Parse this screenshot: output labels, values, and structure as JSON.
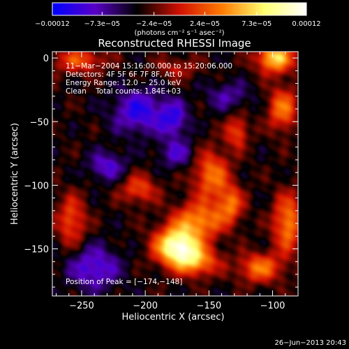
{
  "chart_data": {
    "type": "heatmap",
    "title": "Reconstructed RHESSI Image",
    "xlabel": "Heliocentric X (arcsec)",
    "ylabel": "Heliocentric Y (arcsec)",
    "xlim": [
      -273,
      -80
    ],
    "ylim": [
      -187,
      5
    ],
    "x_ticks": [
      -250,
      -200,
      -150,
      -100
    ],
    "x_tick_labels": [
      "−250",
      "−200",
      "−150",
      "−100"
    ],
    "y_ticks": [
      0,
      -50,
      -100,
      -150
    ],
    "y_tick_labels": [
      "0",
      "−50",
      "−100",
      "−150"
    ],
    "colorbar": {
      "range": [
        -0.00012,
        0.00012
      ],
      "ticks": [
        -0.00012,
        -7.3e-05,
        -2.4e-05,
        2.4e-05,
        7.3e-05,
        0.00012
      ],
      "tick_labels": [
        "−0.00012",
        "−7.3e−05",
        "−2.4e−05",
        "2.4e−05",
        "7.3e−05",
        "0.00012"
      ],
      "units": "(photons cm⁻² s⁻¹ asec⁻²)",
      "colormap": [
        "#0000ff",
        "#5a00c8",
        "#000000",
        "#d21000",
        "#ff7a00",
        "#ffff70",
        "#ffffff"
      ]
    },
    "annotations": [
      "11−Mar−2004 15:16:00.000 to 15:20:06.000",
      "Detectors: 4F 5F 6F 7F 8F, Att 0",
      "Energy Range: 12.0 − 25.0 keV",
      "Clean    Total counts: 1.84E+03"
    ],
    "peak_label": "Position of Peak = [−174,−148]",
    "peak": {
      "x": -174,
      "y": -148
    },
    "sources": [
      {
        "x": -175,
        "y": -148,
        "amp": 1.0,
        "sx": 12,
        "sy": 10
      },
      {
        "x": -158,
        "y": -128,
        "amp": 0.55,
        "sx": 14,
        "sy": 10
      },
      {
        "x": -148,
        "y": -92,
        "amp": 0.5,
        "sx": 10,
        "sy": 14
      },
      {
        "x": -160,
        "y": -160,
        "amp": 0.55,
        "sx": 12,
        "sy": 8
      },
      {
        "x": -133,
        "y": -115,
        "amp": 0.45,
        "sx": 7,
        "sy": 10
      },
      {
        "x": -128,
        "y": -58,
        "amp": 0.4,
        "sx": 6,
        "sy": 9
      },
      {
        "x": -98,
        "y": 0,
        "amp": 0.75,
        "sx": 10,
        "sy": 8
      },
      {
        "x": -92,
        "y": -40,
        "amp": 0.5,
        "sx": 8,
        "sy": 12
      },
      {
        "x": -88,
        "y": -130,
        "amp": 0.55,
        "sx": 8,
        "sy": 16
      },
      {
        "x": -110,
        "y": -165,
        "amp": 0.5,
        "sx": 12,
        "sy": 8
      },
      {
        "x": -252,
        "y": -2,
        "amp": 0.4,
        "sx": 14,
        "sy": 7
      },
      {
        "x": -258,
        "y": -128,
        "amp": 0.4,
        "sx": 8,
        "sy": 14
      },
      {
        "x": -205,
        "y": -103,
        "amp": 0.38,
        "sx": 10,
        "sy": 8
      },
      {
        "x": -175,
        "y": -8,
        "amp": 0.22,
        "sx": 12,
        "sy": 6
      },
      {
        "x": -205,
        "y": -42,
        "amp": -0.45,
        "sx": 14,
        "sy": 12
      },
      {
        "x": -178,
        "y": -48,
        "amp": -0.4,
        "sx": 8,
        "sy": 10
      },
      {
        "x": -230,
        "y": -85,
        "amp": -0.35,
        "sx": 10,
        "sy": 8
      },
      {
        "x": -240,
        "y": -165,
        "amp": -0.4,
        "sx": 14,
        "sy": 12
      },
      {
        "x": -175,
        "y": -75,
        "amp": -0.3,
        "sx": 10,
        "sy": 8
      },
      {
        "x": -135,
        "y": -30,
        "amp": -0.25,
        "sx": 12,
        "sy": 8
      }
    ]
  },
  "footer": {
    "date": "26−Jun−2013 20:43"
  }
}
